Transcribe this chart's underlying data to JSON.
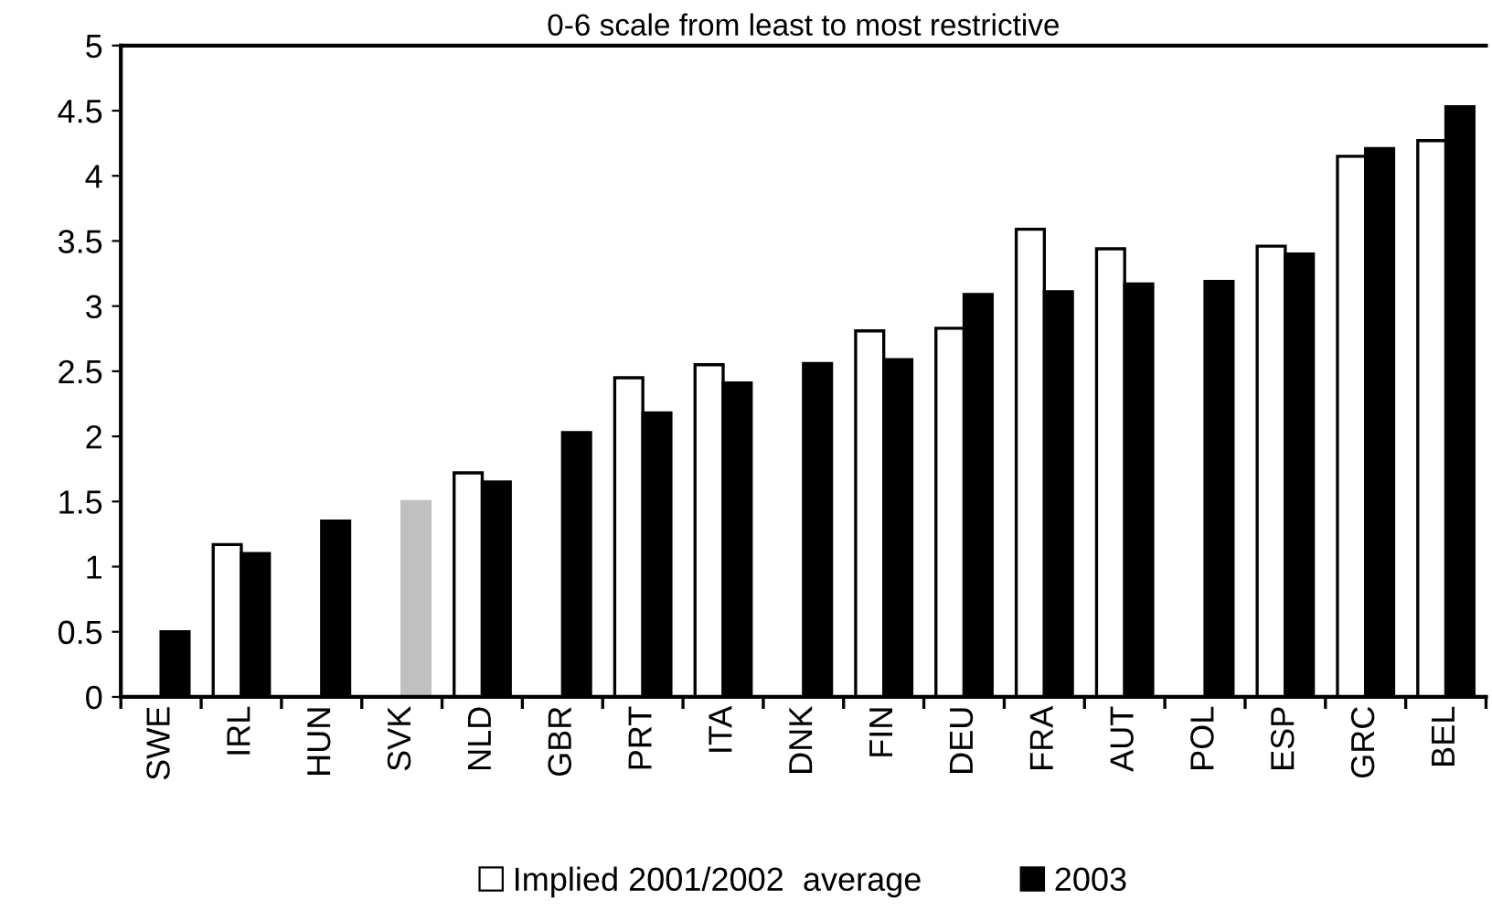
{
  "chart_data": {
    "type": "bar",
    "title": "0-6 scale from least to most restrictive",
    "categories": [
      "SWE",
      "IRL",
      "HUN",
      "SVK",
      "NLD",
      "GBR",
      "PRT",
      "ITA",
      "DNK",
      "FIN",
      "DEU",
      "FRA",
      "AUT",
      "POL",
      "ESP",
      "GRC",
      "BEL"
    ],
    "series": [
      {
        "name": "Implied 2001/2002  average",
        "color": "#ffffff",
        "values": [
          null,
          1.17,
          null,
          null,
          1.72,
          null,
          2.45,
          2.55,
          null,
          2.81,
          2.83,
          3.59,
          3.44,
          null,
          3.46,
          4.15,
          4.27
        ]
      },
      {
        "name": "2003",
        "color": "#000000",
        "colors": [
          "#000000",
          "#000000",
          "#000000",
          "#c0c0c0",
          "#000000",
          "#000000",
          "#000000",
          "#000000",
          "#000000",
          "#000000",
          "#000000",
          "#000000",
          "#000000",
          "#000000",
          "#000000",
          "#000000",
          "#000000"
        ],
        "values": [
          0.5,
          1.1,
          1.35,
          1.5,
          1.65,
          2.03,
          2.18,
          2.41,
          2.56,
          2.59,
          3.09,
          3.11,
          3.17,
          3.19,
          3.4,
          4.21,
          4.53
        ]
      }
    ],
    "ylim": [
      0,
      5
    ],
    "yticks": [
      0,
      0.5,
      1,
      1.5,
      2,
      2.5,
      3,
      3.5,
      4,
      4.5,
      5
    ],
    "grid": false,
    "legend": "bottom"
  }
}
